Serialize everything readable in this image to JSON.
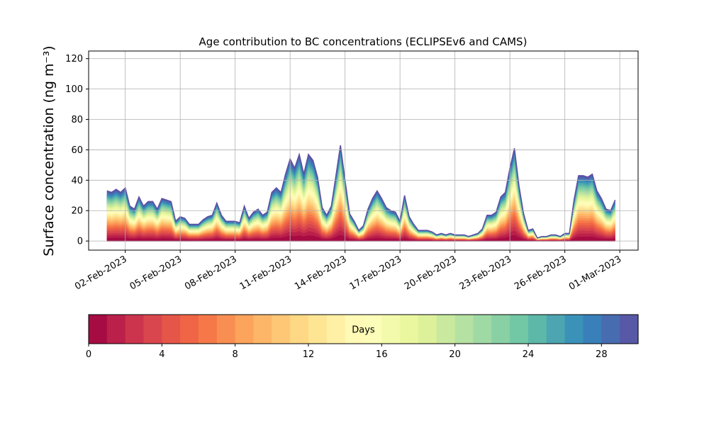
{
  "chart_data": {
    "type": "area",
    "title": "Age contribution to BC concentrations (ECLIPSEv6 and CAMS)",
    "ylabel": "Surface concentration (ng m⁻³)",
    "xlabel": "",
    "ylim": [
      -6,
      125
    ],
    "yticks": [
      0,
      20,
      40,
      60,
      80,
      100,
      120
    ],
    "x_start": "2023-01-31",
    "x_end": "2023-03-02",
    "xticks": [
      {
        "date": "2023-02-02",
        "label": "02-Feb-2023"
      },
      {
        "date": "2023-02-05",
        "label": "05-Feb-2023"
      },
      {
        "date": "2023-02-08",
        "label": "08-Feb-2023"
      },
      {
        "date": "2023-02-11",
        "label": "11-Feb-2023"
      },
      {
        "date": "2023-02-14",
        "label": "14-Feb-2023"
      },
      {
        "date": "2023-02-17",
        "label": "17-Feb-2023"
      },
      {
        "date": "2023-02-20",
        "label": "20-Feb-2023"
      },
      {
        "date": "2023-02-23",
        "label": "23-Feb-2023"
      },
      {
        "date": "2023-02-26",
        "label": "26-Feb-2023"
      },
      {
        "date": "2023-03-01",
        "label": "01-Mar-2023"
      }
    ],
    "grid": true,
    "series_total": [
      [
        "2023-02-01 00:00",
        33
      ],
      [
        "2023-02-01 06:00",
        32
      ],
      [
        "2023-02-01 12:00",
        34
      ],
      [
        "2023-02-01 18:00",
        32
      ],
      [
        "2023-02-02 00:00",
        35
      ],
      [
        "2023-02-02 06:00",
        23
      ],
      [
        "2023-02-02 12:00",
        21
      ],
      [
        "2023-02-02 18:00",
        29
      ],
      [
        "2023-02-03 00:00",
        23
      ],
      [
        "2023-02-03 06:00",
        26
      ],
      [
        "2023-02-03 12:00",
        26
      ],
      [
        "2023-02-03 18:00",
        21
      ],
      [
        "2023-02-04 00:00",
        28
      ],
      [
        "2023-02-04 06:00",
        27
      ],
      [
        "2023-02-04 12:00",
        26
      ],
      [
        "2023-02-04 18:00",
        13
      ],
      [
        "2023-02-05 00:00",
        16
      ],
      [
        "2023-02-05 06:00",
        15
      ],
      [
        "2023-02-05 12:00",
        11
      ],
      [
        "2023-02-05 18:00",
        11
      ],
      [
        "2023-02-06 00:00",
        11
      ],
      [
        "2023-02-06 06:00",
        14
      ],
      [
        "2023-02-06 12:00",
        16
      ],
      [
        "2023-02-06 18:00",
        17
      ],
      [
        "2023-02-07 00:00",
        25
      ],
      [
        "2023-02-07 06:00",
        17
      ],
      [
        "2023-02-07 12:00",
        13
      ],
      [
        "2023-02-07 18:00",
        13
      ],
      [
        "2023-02-08 00:00",
        13
      ],
      [
        "2023-02-08 06:00",
        12
      ],
      [
        "2023-02-08 12:00",
        23
      ],
      [
        "2023-02-08 18:00",
        15
      ],
      [
        "2023-02-09 00:00",
        19
      ],
      [
        "2023-02-09 06:00",
        21
      ],
      [
        "2023-02-09 12:00",
        17
      ],
      [
        "2023-02-09 18:00",
        19
      ],
      [
        "2023-02-10 00:00",
        32
      ],
      [
        "2023-02-10 06:00",
        35
      ],
      [
        "2023-02-10 12:00",
        32
      ],
      [
        "2023-02-10 18:00",
        44
      ],
      [
        "2023-02-11 00:00",
        54
      ],
      [
        "2023-02-11 06:00",
        48
      ],
      [
        "2023-02-11 12:00",
        57
      ],
      [
        "2023-02-11 18:00",
        44
      ],
      [
        "2023-02-12 00:00",
        57
      ],
      [
        "2023-02-12 06:00",
        53
      ],
      [
        "2023-02-12 12:00",
        42
      ],
      [
        "2023-02-12 18:00",
        22
      ],
      [
        "2023-02-13 00:00",
        17
      ],
      [
        "2023-02-13 06:00",
        23
      ],
      [
        "2023-02-13 12:00",
        43
      ],
      [
        "2023-02-13 18:00",
        63
      ],
      [
        "2023-02-14 00:00",
        40
      ],
      [
        "2023-02-14 06:00",
        18
      ],
      [
        "2023-02-14 12:00",
        13
      ],
      [
        "2023-02-14 18:00",
        7
      ],
      [
        "2023-02-15 00:00",
        10
      ],
      [
        "2023-02-15 06:00",
        21
      ],
      [
        "2023-02-15 12:00",
        28
      ],
      [
        "2023-02-15 18:00",
        33
      ],
      [
        "2023-02-16 00:00",
        28
      ],
      [
        "2023-02-16 06:00",
        22
      ],
      [
        "2023-02-16 12:00",
        20
      ],
      [
        "2023-02-16 18:00",
        19
      ],
      [
        "2023-02-17 00:00",
        13
      ],
      [
        "2023-02-17 06:00",
        30
      ],
      [
        "2023-02-17 12:00",
        16
      ],
      [
        "2023-02-17 18:00",
        11
      ],
      [
        "2023-02-18 00:00",
        7
      ],
      [
        "2023-02-18 06:00",
        7
      ],
      [
        "2023-02-18 12:00",
        7
      ],
      [
        "2023-02-18 18:00",
        6
      ],
      [
        "2023-02-19 00:00",
        4
      ],
      [
        "2023-02-19 06:00",
        5
      ],
      [
        "2023-02-19 12:00",
        4
      ],
      [
        "2023-02-19 18:00",
        5
      ],
      [
        "2023-02-20 00:00",
        4
      ],
      [
        "2023-02-20 06:00",
        4
      ],
      [
        "2023-02-20 12:00",
        4
      ],
      [
        "2023-02-20 18:00",
        3
      ],
      [
        "2023-02-21 00:00",
        4
      ],
      [
        "2023-02-21 06:00",
        5
      ],
      [
        "2023-02-21 12:00",
        8
      ],
      [
        "2023-02-21 18:00",
        17
      ],
      [
        "2023-02-22 00:00",
        17
      ],
      [
        "2023-02-22 06:00",
        19
      ],
      [
        "2023-02-22 12:00",
        29
      ],
      [
        "2023-02-22 18:00",
        32
      ],
      [
        "2023-02-23 00:00",
        48
      ],
      [
        "2023-02-23 06:00",
        61
      ],
      [
        "2023-02-23 12:00",
        36
      ],
      [
        "2023-02-23 18:00",
        18
      ],
      [
        "2023-02-24 00:00",
        7
      ],
      [
        "2023-02-24 06:00",
        8
      ],
      [
        "2023-02-24 12:00",
        2
      ],
      [
        "2023-02-24 18:00",
        3
      ],
      [
        "2023-02-25 00:00",
        3
      ],
      [
        "2023-02-25 06:00",
        4
      ],
      [
        "2023-02-25 12:00",
        4
      ],
      [
        "2023-02-25 18:00",
        3
      ],
      [
        "2023-02-26 00:00",
        5
      ],
      [
        "2023-02-26 06:00",
        5
      ],
      [
        "2023-02-26 12:00",
        27
      ],
      [
        "2023-02-26 18:00",
        43
      ],
      [
        "2023-02-27 00:00",
        43
      ],
      [
        "2023-02-27 06:00",
        42
      ],
      [
        "2023-02-27 12:00",
        44
      ],
      [
        "2023-02-27 18:00",
        33
      ],
      [
        "2023-02-28 00:00",
        28
      ],
      [
        "2023-02-28 06:00",
        21
      ],
      [
        "2023-02-28 12:00",
        20
      ],
      [
        "2023-02-28 18:00",
        27
      ]
    ],
    "colorbar": {
      "label": "Days",
      "min": 0,
      "max": 30,
      "step": 1,
      "ticks": [
        0,
        4,
        8,
        12,
        16,
        20,
        24,
        28
      ],
      "colormap": "Spectral"
    }
  }
}
